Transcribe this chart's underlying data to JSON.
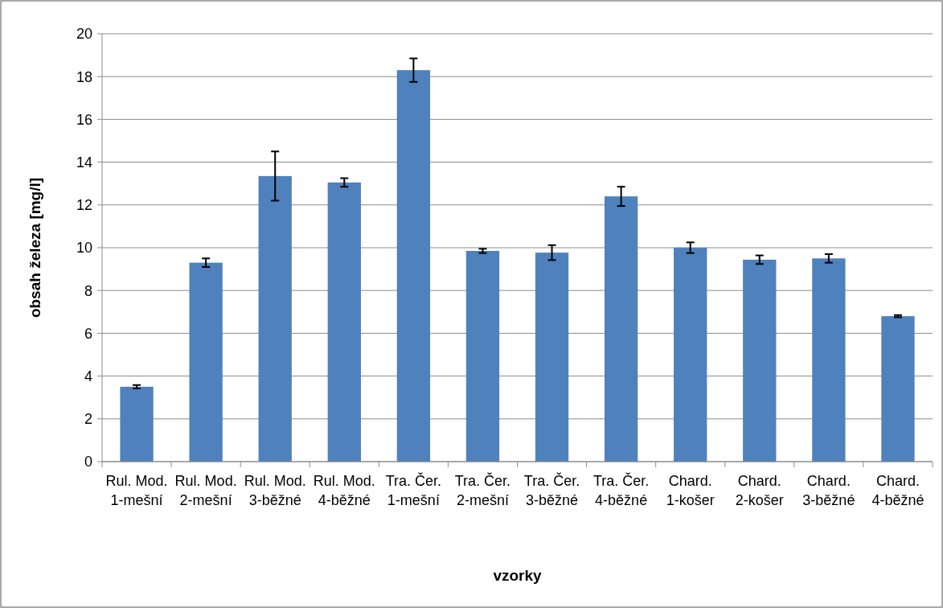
{
  "chart_data": {
    "type": "bar",
    "xlabel": "vzorky",
    "ylabel": "obsah železa [mg/l]",
    "categories": [
      "Rul. Mod. 1-mešní",
      "Rul. Mod. 2-mešní",
      "Rul. Mod. 3-běžné",
      "Rul. Mod. 4-běžné",
      "Tra. Čer. 1-mešní",
      "Tra. Čer. 2-mešní",
      "Tra. Čer. 3-běžné",
      "Tra. Čer. 4-běžné",
      "Chard. 1-košer",
      "Chard. 2-košer",
      "Chard. 3-běžné",
      "Chard. 4-běžné"
    ],
    "values": [
      3.5,
      9.3,
      13.35,
      13.05,
      18.3,
      9.85,
      9.77,
      12.4,
      10.0,
      9.44,
      9.5,
      6.8
    ],
    "errors": [
      0.08,
      0.2,
      1.15,
      0.2,
      0.55,
      0.1,
      0.35,
      0.45,
      0.25,
      0.2,
      0.2,
      0.05
    ],
    "color": "#4f81bd",
    "ylim": [
      0,
      20
    ],
    "yticks": [
      0,
      2,
      4,
      6,
      8,
      10,
      12,
      14,
      16,
      18,
      20
    ],
    "grid": "y"
  }
}
